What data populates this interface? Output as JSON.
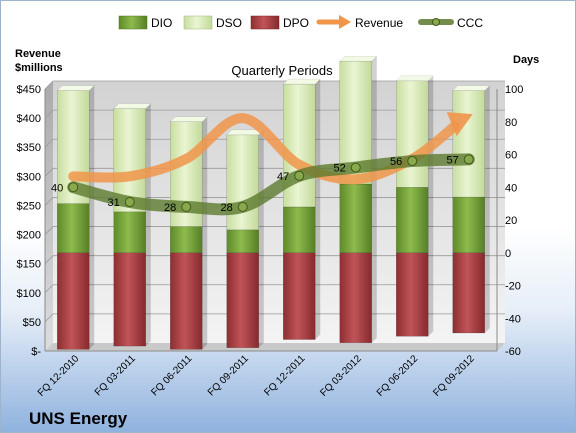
{
  "company": "UNS Energy",
  "chart_data": {
    "type": "bar",
    "title": "Quarterly Periods",
    "left_axis_label_line1": "Revenue",
    "left_axis_label_line2": "$millions",
    "right_axis_label": "Days",
    "categories": [
      "FQ 12-2010",
      "FQ 03-2011",
      "FQ 06-2011",
      "FQ 09-2011",
      "FQ 12-2011",
      "FQ 03-2012",
      "FQ 06-2012",
      "FQ 09-2012"
    ],
    "left_ticks": [
      "$-",
      "$50",
      "$100",
      "$150",
      "$200",
      "$250",
      "$300",
      "$350",
      "$400",
      "$450"
    ],
    "ylim_left": [
      0,
      450
    ],
    "right_ticks": [
      "-60",
      "-40",
      "-20",
      "0",
      "20",
      "40",
      "60",
      "80",
      "100"
    ],
    "ylim_right": [
      -60,
      100
    ],
    "series": [
      {
        "name": "DIO",
        "color": "#77a33a",
        "values": [
          30,
          25,
          16,
          14,
          28,
          42,
          40,
          34
        ]
      },
      {
        "name": "DSO",
        "color": "#d9ebb8",
        "values": [
          69,
          63,
          64,
          58,
          75,
          75,
          65,
          65
        ]
      },
      {
        "name": "DPO",
        "color": "#a63a3e",
        "values": [
          59,
          57,
          59,
          58,
          53,
          55,
          51,
          49
        ]
      },
      {
        "name": "Revenue",
        "color": "#f0954a",
        "values": [
          300,
          300,
          330,
          400,
          320,
          295,
          330,
          400
        ]
      },
      {
        "name": "CCC",
        "color": "#5c7a2e",
        "values": [
          40,
          31,
          28,
          28,
          47,
          52,
          56,
          57
        ]
      }
    ],
    "ccc_labels": [
      "40",
      "31",
      "28",
      "28",
      "47",
      "52",
      "56",
      "57"
    ],
    "legend_position": "top"
  }
}
